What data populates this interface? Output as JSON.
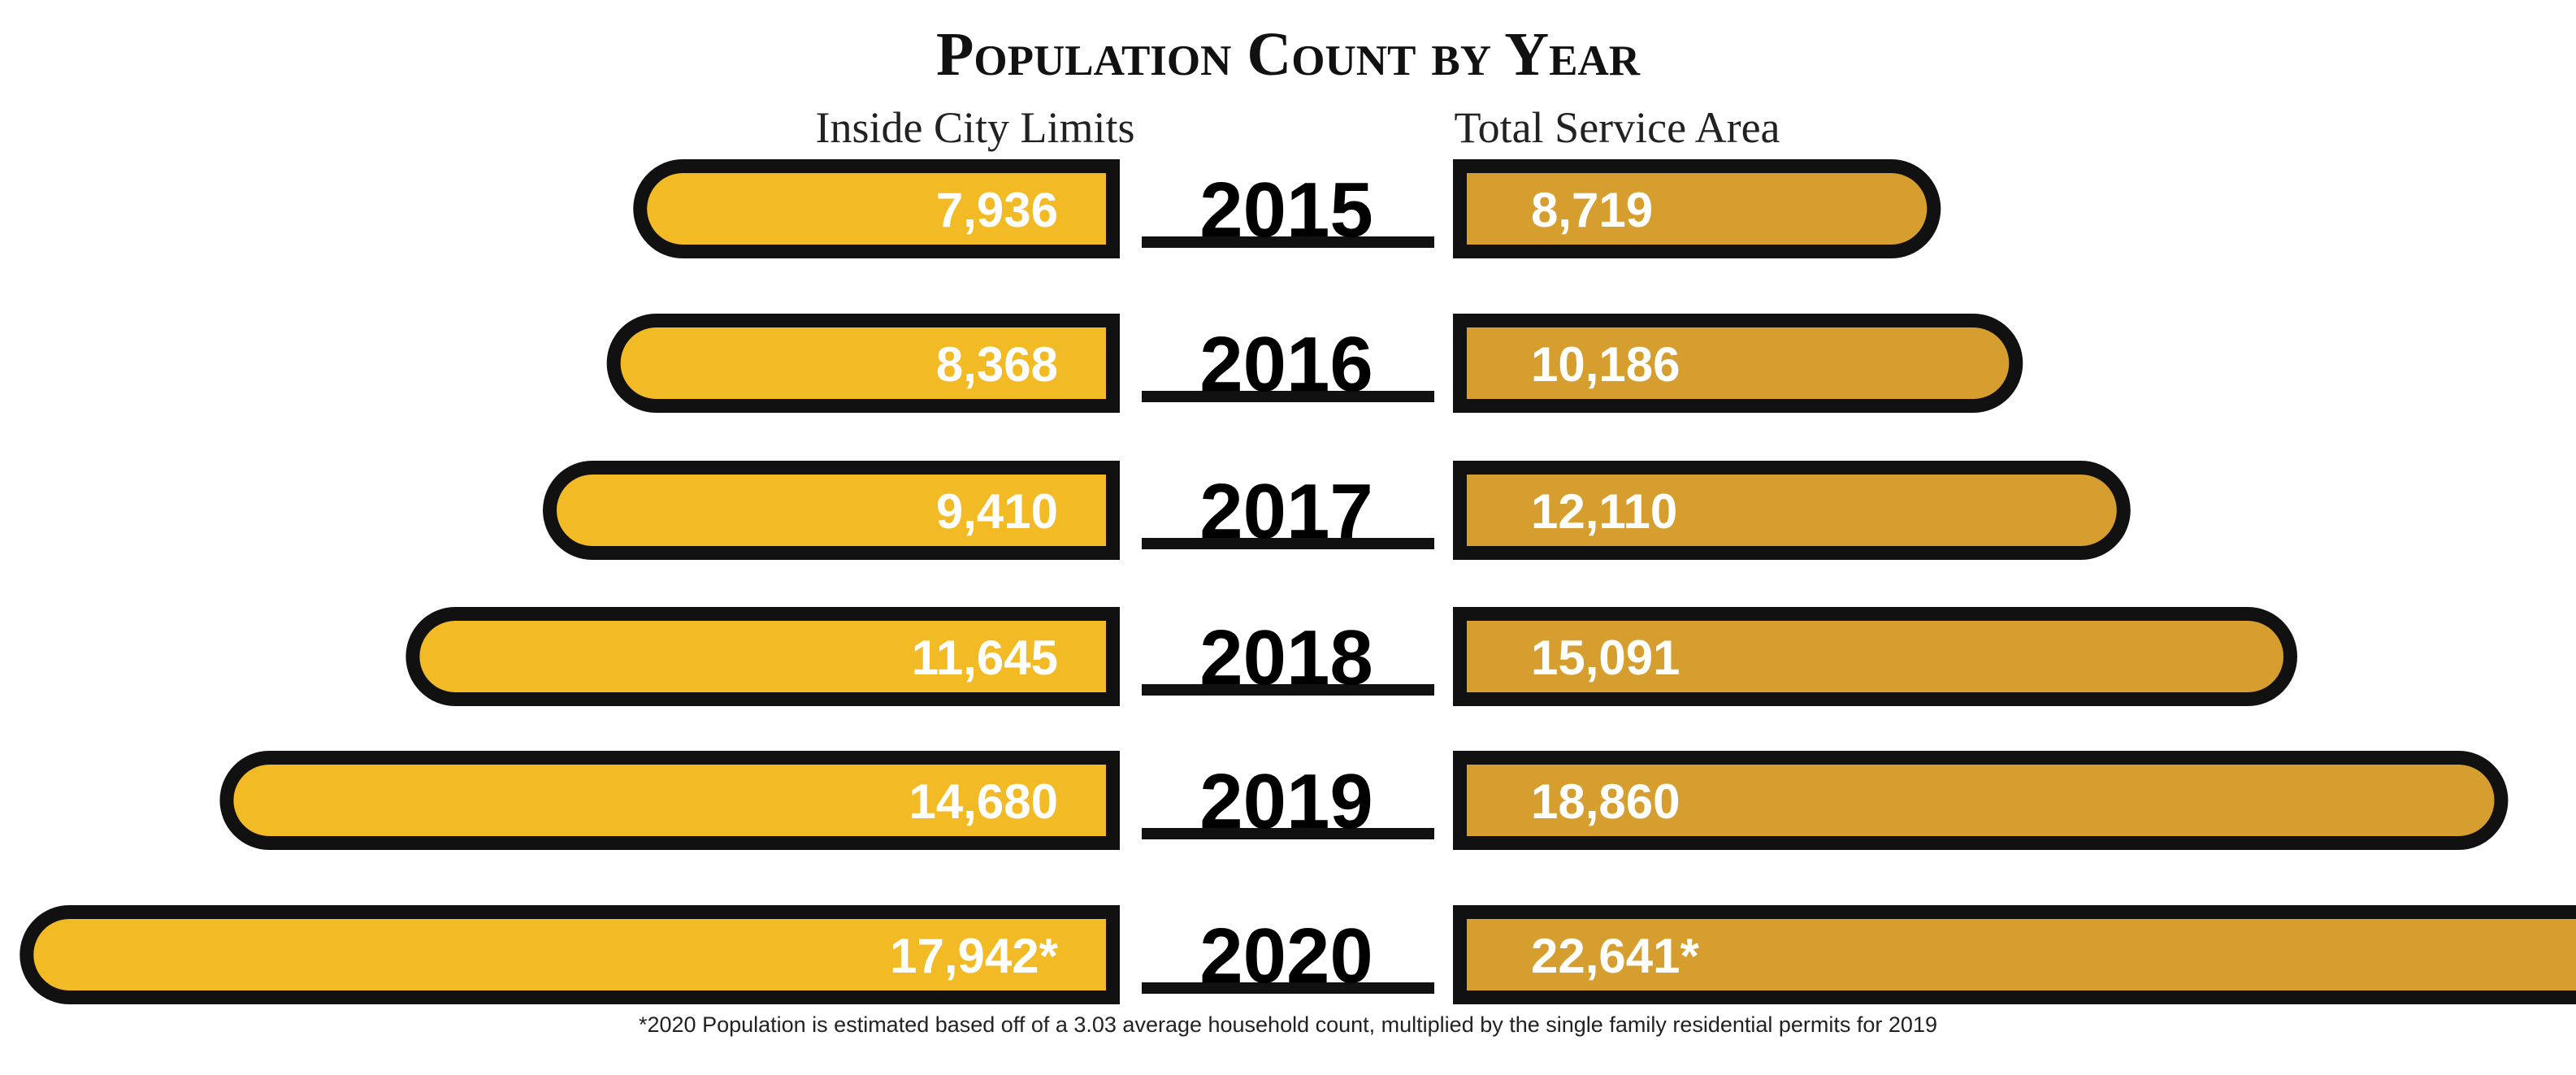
{
  "chart_data": {
    "type": "bar",
    "title": "Population Count by Year",
    "categories": [
      "2015",
      "2016",
      "2017",
      "2018",
      "2019",
      "2020"
    ],
    "series": [
      {
        "name": "Inside City Limits",
        "values": [
          7936,
          8368,
          9410,
          11645,
          14680,
          17942
        ],
        "labels": [
          "7,936",
          "8,368",
          "9,410",
          "11,645",
          "14,680",
          "17,942*"
        ]
      },
      {
        "name": "Total Service Area",
        "values": [
          8719,
          10186,
          12110,
          15091,
          18860,
          22641
        ],
        "labels": [
          "8,719",
          "10,186",
          "12,110",
          "15,091",
          "18,860",
          "22,641*"
        ]
      }
    ],
    "footnote": "*2020 Population is estimated based off of a 3.03 average household count, multiplied by the single family residential permits for 2019"
  },
  "colors": {
    "inside_fill": "#F2BB25",
    "service_fill": "#D69E2E",
    "outline": "#111111",
    "value_text": "#FFFFFF",
    "year_text": "#000000"
  }
}
